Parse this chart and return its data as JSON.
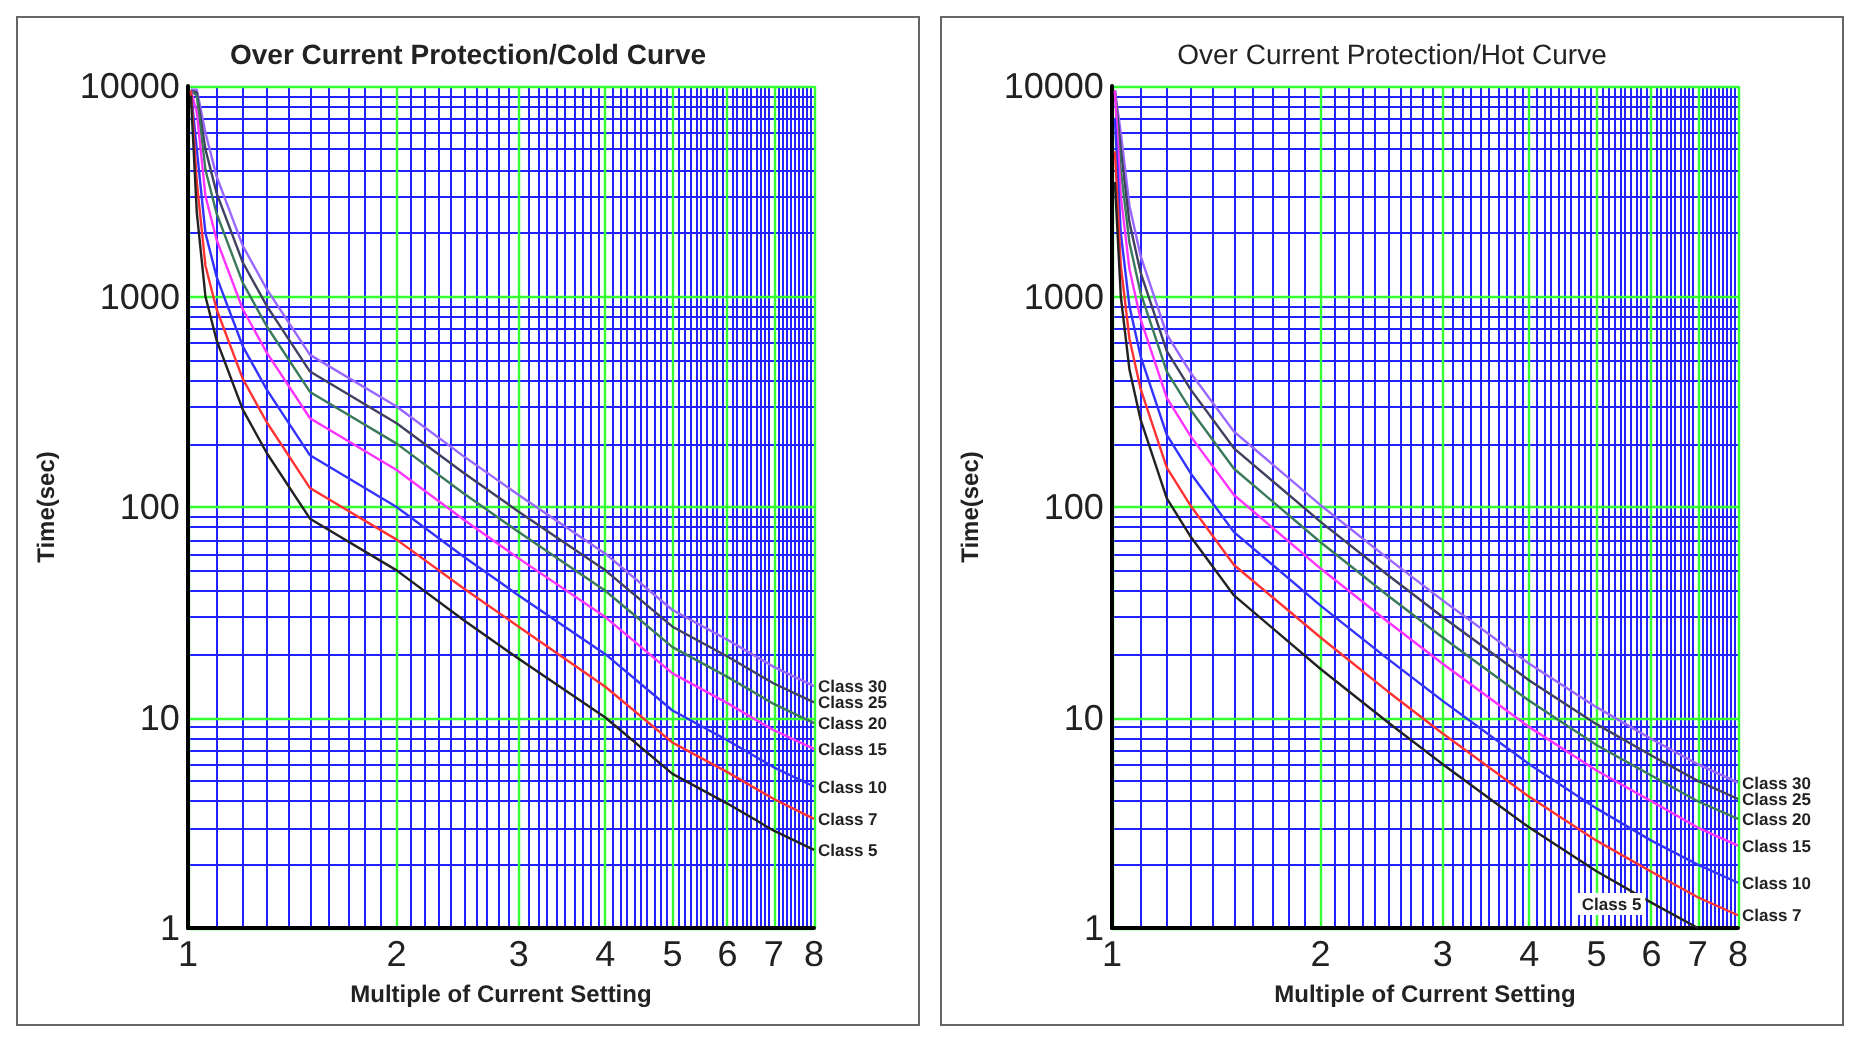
{
  "chart_data": [
    {
      "type": "line",
      "title": "Over Current Protection/Cold Curve",
      "xlabel": "Multiple of Current Setting",
      "ylabel": "Time(sec)",
      "log": "xy",
      "grid": true,
      "marker": "none",
      "xlim": [
        1,
        8
      ],
      "ylim": [
        1,
        10000
      ],
      "xticks": [
        1,
        2,
        3,
        4,
        5,
        6,
        7,
        8,
        {
          "value": 1.1,
          "label": null
        },
        {
          "value": 1.2,
          "label": null
        },
        {
          "value": 1.3,
          "label": null
        },
        {
          "value": 1.4,
          "label": null
        },
        {
          "value": 1.5,
          "label": null
        },
        {
          "value": 1.6,
          "label": null
        },
        {
          "value": 1.7,
          "label": null
        },
        {
          "value": 1.8,
          "label": null
        },
        {
          "value": 1.9,
          "label": null
        },
        {
          "value": 2.1,
          "label": null
        },
        {
          "value": 2.2,
          "label": null
        },
        {
          "value": 2.3,
          "label": null
        },
        {
          "value": 2.4,
          "label": null
        },
        {
          "value": 2.5,
          "label": null
        },
        {
          "value": 2.6,
          "label": null
        },
        {
          "value": 2.7,
          "label": null
        },
        {
          "value": 2.8,
          "label": null
        },
        {
          "value": 2.9,
          "label": null
        },
        {
          "value": 3.1,
          "label": null
        },
        {
          "value": 3.2,
          "label": null
        },
        {
          "value": 3.3,
          "label": null
        },
        {
          "value": 3.4,
          "label": null
        },
        {
          "value": 3.5,
          "label": null
        },
        {
          "value": 3.6,
          "label": null
        },
        {
          "value": 3.7,
          "label": null
        },
        {
          "value": 3.8,
          "label": null
        },
        {
          "value": 3.9,
          "label": null
        },
        {
          "value": 4.1,
          "label": null
        },
        {
          "value": 4.2,
          "label": null
        },
        {
          "value": 4.3,
          "label": null
        },
        {
          "value": 4.4,
          "label": null
        },
        {
          "value": 4.5,
          "label": null
        },
        {
          "value": 4.6,
          "label": null
        },
        {
          "value": 4.7,
          "label": null
        },
        {
          "value": 4.8,
          "label": null
        },
        {
          "value": 4.9,
          "label": null
        },
        {
          "value": 5.1,
          "label": null
        },
        {
          "value": 5.2,
          "label": null
        },
        {
          "value": 5.3,
          "label": null
        },
        {
          "value": 5.4,
          "label": null
        },
        {
          "value": 5.5,
          "label": null
        },
        {
          "value": 5.6,
          "label": null
        },
        {
          "value": 5.7,
          "label": null
        },
        {
          "value": 5.8,
          "label": null
        },
        {
          "value": 5.9,
          "label": null
        },
        {
          "value": 6.1,
          "label": null
        },
        {
          "value": 6.2,
          "label": null
        },
        {
          "value": 6.3,
          "label": null
        },
        {
          "value": 6.4,
          "label": null
        },
        {
          "value": 6.5,
          "label": null
        },
        {
          "value": 6.6,
          "label": null
        },
        {
          "value": 6.7,
          "label": null
        },
        {
          "value": 6.8,
          "label": null
        },
        {
          "value": 6.9,
          "label": null
        },
        {
          "value": 7.1,
          "label": null
        },
        {
          "value": 7.2,
          "label": null
        },
        {
          "value": 7.3,
          "label": null
        },
        {
          "value": 7.4,
          "label": null
        },
        {
          "value": 7.5,
          "label": null
        },
        {
          "value": 7.6,
          "label": null
        },
        {
          "value": 7.7,
          "label": null
        },
        {
          "value": 7.8,
          "label": null
        },
        {
          "value": 7.9,
          "label": null
        }
      ],
      "yticks": [
        1,
        10,
        100,
        1000,
        10000,
        {
          "value": 2,
          "label": null
        },
        {
          "value": 3,
          "label": null
        },
        {
          "value": 4,
          "label": null
        },
        {
          "value": 5,
          "label": null
        },
        {
          "value": 6,
          "label": null
        },
        {
          "value": 7,
          "label": null
        },
        {
          "value": 8,
          "label": null
        },
        {
          "value": 9,
          "label": null
        },
        {
          "value": 20,
          "label": null
        },
        {
          "value": 30,
          "label": null
        },
        {
          "value": 40,
          "label": null
        },
        {
          "value": 50,
          "label": null
        },
        {
          "value": 60,
          "label": null
        },
        {
          "value": 70,
          "label": null
        },
        {
          "value": 80,
          "label": null
        },
        {
          "value": 90,
          "label": null
        },
        {
          "value": 200,
          "label": null
        },
        {
          "value": 300,
          "label": null
        },
        {
          "value": 400,
          "label": null
        },
        {
          "value": 500,
          "label": null
        },
        {
          "value": 600,
          "label": null
        },
        {
          "value": 700,
          "label": null
        },
        {
          "value": 800,
          "label": null
        },
        {
          "value": 900,
          "label": null
        },
        {
          "value": 2000,
          "label": null
        },
        {
          "value": 3000,
          "label": null
        },
        {
          "value": 4000,
          "label": null
        },
        {
          "value": 5000,
          "label": null
        },
        {
          "value": 6000,
          "label": null
        },
        {
          "value": 7000,
          "label": null
        },
        {
          "value": 8000,
          "label": null
        },
        {
          "value": 9000,
          "label": null
        }
      ],
      "x": [
        1.01,
        1.03,
        1.06,
        1.1,
        1.2,
        1.3,
        1.5,
        2,
        2.5,
        3,
        4,
        5,
        6,
        7,
        8
      ],
      "series": [
        {
          "name": "Class 30",
          "color": "#9966ff",
          "values": [
            9600,
            9600,
            6000,
            3720,
            1740,
            1080,
            528,
            300,
            174,
            114,
            60,
            32.4,
            23.4,
            17.4,
            14.1
          ]
        },
        {
          "name": "Class 25",
          "color": "#404060",
          "values": [
            9500,
            9300,
            5000,
            3100,
            1450,
            900,
            440,
            250,
            145,
            95,
            50,
            27,
            19.5,
            14.5,
            11.8
          ]
        },
        {
          "name": "Class 20",
          "color": "#3a7a5a",
          "values": [
            9500,
            9000,
            4000,
            2480,
            1160,
            720,
            352,
            200,
            116,
            76,
            40,
            21.6,
            15.6,
            11.6,
            9.4
          ]
        },
        {
          "name": "Class 15",
          "color": "#ff33ff",
          "values": [
            9500,
            7500,
            3000,
            1860,
            870,
            540,
            264,
            150,
            87,
            57,
            30,
            16.2,
            11.7,
            8.7,
            7.1
          ]
        },
        {
          "name": "Class 10",
          "color": "#3333ff",
          "values": [
            9500,
            5000,
            2000,
            1240,
            580,
            360,
            176,
            100,
            58,
            38,
            20,
            10.8,
            7.8,
            5.8,
            4.7
          ]
        },
        {
          "name": "Class 7",
          "color": "#ff3333",
          "values": [
            9500,
            3500,
            1400,
            870,
            406,
            252,
            123,
            70,
            41,
            27,
            14,
            7.6,
            5.5,
            4.1,
            3.3
          ]
        },
        {
          "name": "Class 5",
          "color": "#222222",
          "values": [
            9000,
            2500,
            1000,
            620,
            290,
            180,
            88,
            50,
            29,
            19,
            10,
            5.4,
            3.9,
            2.9,
            2.35
          ]
        }
      ]
    },
    {
      "type": "line",
      "title": "Over Current Protection/Hot Curve",
      "xlabel": "Multiple of Current Setting",
      "ylabel": "Time(sec)",
      "log": "xy",
      "grid": true,
      "marker": "none",
      "xlim": [
        1,
        8
      ],
      "ylim": [
        1,
        10000
      ],
      "xticks": [
        1,
        2,
        3,
        4,
        5,
        6,
        7,
        8,
        {
          "value": 1.1,
          "label": null
        },
        {
          "value": 1.2,
          "label": null
        },
        {
          "value": 1.3,
          "label": null
        },
        {
          "value": 1.4,
          "label": null
        },
        {
          "value": 1.5,
          "label": null
        },
        {
          "value": 1.6,
          "label": null
        },
        {
          "value": 1.7,
          "label": null
        },
        {
          "value": 1.8,
          "label": null
        },
        {
          "value": 1.9,
          "label": null
        },
        {
          "value": 2.1,
          "label": null
        },
        {
          "value": 2.2,
          "label": null
        },
        {
          "value": 2.3,
          "label": null
        },
        {
          "value": 2.4,
          "label": null
        },
        {
          "value": 2.5,
          "label": null
        },
        {
          "value": 2.6,
          "label": null
        },
        {
          "value": 2.7,
          "label": null
        },
        {
          "value": 2.8,
          "label": null
        },
        {
          "value": 2.9,
          "label": null
        },
        {
          "value": 3.1,
          "label": null
        },
        {
          "value": 3.2,
          "label": null
        },
        {
          "value": 3.3,
          "label": null
        },
        {
          "value": 3.4,
          "label": null
        },
        {
          "value": 3.5,
          "label": null
        },
        {
          "value": 3.6,
          "label": null
        },
        {
          "value": 3.7,
          "label": null
        },
        {
          "value": 3.8,
          "label": null
        },
        {
          "value": 3.9,
          "label": null
        },
        {
          "value": 4.1,
          "label": null
        },
        {
          "value": 4.2,
          "label": null
        },
        {
          "value": 4.3,
          "label": null
        },
        {
          "value": 4.4,
          "label": null
        },
        {
          "value": 4.5,
          "label": null
        },
        {
          "value": 4.6,
          "label": null
        },
        {
          "value": 4.7,
          "label": null
        },
        {
          "value": 4.8,
          "label": null
        },
        {
          "value": 4.9,
          "label": null
        },
        {
          "value": 5.1,
          "label": null
        },
        {
          "value": 5.2,
          "label": null
        },
        {
          "value": 5.3,
          "label": null
        },
        {
          "value": 5.4,
          "label": null
        },
        {
          "value": 5.5,
          "label": null
        },
        {
          "value": 5.6,
          "label": null
        },
        {
          "value": 5.7,
          "label": null
        },
        {
          "value": 5.8,
          "label": null
        },
        {
          "value": 5.9,
          "label": null
        },
        {
          "value": 6.1,
          "label": null
        },
        {
          "value": 6.2,
          "label": null
        },
        {
          "value": 6.3,
          "label": null
        },
        {
          "value": 6.4,
          "label": null
        },
        {
          "value": 6.5,
          "label": null
        },
        {
          "value": 6.6,
          "label": null
        },
        {
          "value": 6.7,
          "label": null
        },
        {
          "value": 6.8,
          "label": null
        },
        {
          "value": 6.9,
          "label": null
        },
        {
          "value": 7.1,
          "label": null
        },
        {
          "value": 7.2,
          "label": null
        },
        {
          "value": 7.3,
          "label": null
        },
        {
          "value": 7.4,
          "label": null
        },
        {
          "value": 7.5,
          "label": null
        },
        {
          "value": 7.6,
          "label": null
        },
        {
          "value": 7.7,
          "label": null
        },
        {
          "value": 7.8,
          "label": null
        },
        {
          "value": 7.9,
          "label": null
        }
      ],
      "yticks": [
        1,
        10,
        100,
        1000,
        10000,
        {
          "value": 2,
          "label": null
        },
        {
          "value": 3,
          "label": null
        },
        {
          "value": 4,
          "label": null
        },
        {
          "value": 5,
          "label": null
        },
        {
          "value": 6,
          "label": null
        },
        {
          "value": 7,
          "label": null
        },
        {
          "value": 8,
          "label": null
        },
        {
          "value": 9,
          "label": null
        },
        {
          "value": 20,
          "label": null
        },
        {
          "value": 30,
          "label": null
        },
        {
          "value": 40,
          "label": null
        },
        {
          "value": 50,
          "label": null
        },
        {
          "value": 60,
          "label": null
        },
        {
          "value": 70,
          "label": null
        },
        {
          "value": 80,
          "label": null
        },
        {
          "value": 90,
          "label": null
        },
        {
          "value": 200,
          "label": null
        },
        {
          "value": 300,
          "label": null
        },
        {
          "value": 400,
          "label": null
        },
        {
          "value": 500,
          "label": null
        },
        {
          "value": 600,
          "label": null
        },
        {
          "value": 700,
          "label": null
        },
        {
          "value": 800,
          "label": null
        },
        {
          "value": 900,
          "label": null
        },
        {
          "value": 2000,
          "label": null
        },
        {
          "value": 3000,
          "label": null
        },
        {
          "value": 4000,
          "label": null
        },
        {
          "value": 5000,
          "label": null
        },
        {
          "value": 6000,
          "label": null
        },
        {
          "value": 7000,
          "label": null
        },
        {
          "value": 8000,
          "label": null
        },
        {
          "value": 9000,
          "label": null
        }
      ],
      "x": [
        1.01,
        1.03,
        1.06,
        1.1,
        1.2,
        1.3,
        1.5,
        2,
        2.5,
        3,
        4,
        5,
        6,
        7,
        8
      ],
      "series": [
        {
          "name": "Class 30",
          "color": "#9966ff",
          "values": [
            9500,
            6000,
            2700,
            1560,
            660,
            432,
            228,
            102,
            57,
            36,
            18,
            11.2,
            7.9,
            6,
            4.9
          ]
        },
        {
          "name": "Class 25",
          "color": "#404060",
          "values": [
            9500,
            5000,
            2250,
            1300,
            550,
            360,
            190,
            85,
            47.5,
            30,
            15,
            9.3,
            6.6,
            5,
            4.1
          ]
        },
        {
          "name": "Class 20",
          "color": "#3a7a5a",
          "values": [
            9500,
            4000,
            1800,
            1040,
            440,
            288,
            152,
            68,
            38,
            24,
            12,
            7.4,
            5.3,
            4,
            3.3
          ]
        },
        {
          "name": "Class 15",
          "color": "#ff33ff",
          "values": [
            9500,
            3000,
            1350,
            780,
            330,
            216,
            114,
            51,
            28.5,
            18,
            9,
            5.6,
            4,
            3,
            2.46
          ]
        },
        {
          "name": "Class 10",
          "color": "#3333ff",
          "values": [
            7000,
            2000,
            900,
            520,
            220,
            144,
            76,
            34,
            19,
            12,
            6,
            3.7,
            2.6,
            2,
            1.64
          ]
        },
        {
          "name": "Class 7",
          "color": "#ff3333",
          "values": [
            4900,
            1400,
            630,
            364,
            154,
            101,
            53,
            24,
            13.3,
            8.4,
            4.2,
            2.6,
            1.85,
            1.4,
            1.15
          ]
        },
        {
          "name": "Class 5",
          "color": "#222222",
          "x": [
            1.01,
            1.03,
            1.06,
            1.1,
            1.2,
            1.3,
            1.5,
            2,
            2.5,
            3,
            4,
            5,
            6,
            7
          ],
          "values": [
            3500,
            1000,
            450,
            260,
            110,
            72,
            38,
            17,
            9.5,
            6,
            3,
            1.86,
            1.32,
            1.0
          ]
        }
      ]
    }
  ]
}
